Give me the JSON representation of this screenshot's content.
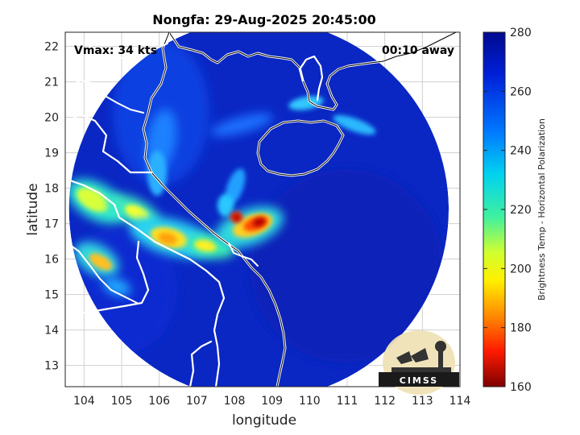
{
  "figure": {
    "title": "Nongfa: 29-Aug-2025 20:45:00",
    "vmax_label": "Vmax: 34 kts",
    "time_label": "00:10 away",
    "logo_text": "CIMSS"
  },
  "map": {
    "xlabel": "longitude",
    "ylabel": "latitude",
    "xlim": [
      103.5,
      114
    ],
    "ylim": [
      12.4,
      22.4
    ],
    "x_ticks": [
      "104",
      "105",
      "106",
      "107",
      "108",
      "109",
      "110",
      "111",
      "112",
      "113",
      "114"
    ],
    "y_ticks": [
      "13",
      "14",
      "15",
      "16",
      "17",
      "18",
      "19",
      "20",
      "21",
      "22"
    ],
    "grid": true,
    "swath_center": [
      108.65,
      17.4
    ],
    "swath_radius_deg": 5.05
  },
  "colorbar": {
    "label": "Brightness Temp - Horizontal Polarization",
    "range": [
      160,
      280
    ],
    "ticks": [
      "280",
      "260",
      "240",
      "220",
      "200",
      "180",
      "160"
    ]
  },
  "colors": {
    "background_field": "#0a27c4",
    "coast": "#ffffff",
    "grid": "#d0d0d0"
  },
  "features": {
    "storm_center": [
      108.7,
      16.95
    ],
    "storm_min_tb": 172
  }
}
